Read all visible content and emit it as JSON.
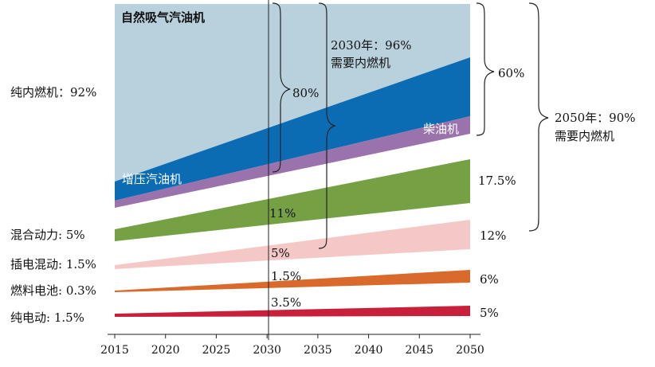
{
  "chart_data": {
    "type": "area",
    "title": "",
    "xlabel": "",
    "ylabel": "",
    "x_ticks": [
      "2015",
      "2020",
      "2025",
      "2030",
      "2035",
      "2040",
      "2045",
      "2050"
    ],
    "xlim": [
      2015,
      2050
    ],
    "series": [
      {
        "name": "自然吸气汽油机",
        "color": "#b9d0dd"
      },
      {
        "name": "增压汽油机",
        "color": "#0b6cb4"
      },
      {
        "name": "柴油机",
        "color": "#9a73ad"
      },
      {
        "name": "混合动力",
        "color": "#76a044"
      },
      {
        "name": "插电混动",
        "color": "#f5c8c8"
      },
      {
        "name": "燃料电池",
        "color": "#d96a2b"
      },
      {
        "name": "纯电动",
        "color": "#c8203b"
      }
    ],
    "labels": {
      "na_gas": "自然吸气汽油机",
      "turbo": "增压汽油机",
      "diesel": "柴油机"
    },
    "left_values": {
      "ice": "纯内燃机：92%",
      "hybrid": "混合动力: 5%",
      "phev": "插电混动: 1.5%",
      "fuel_cell": "燃料电池: 0.3%",
      "ev": "纯电动: 1.5%"
    },
    "mid_values": {
      "ice": "80%",
      "hybrid": "11%",
      "phev": "5%",
      "fuel_cell": "1.5%",
      "ev": "3.5%"
    },
    "mid_total": {
      "line1": "2030年：96%",
      "line2": "需要内燃机"
    },
    "right_values": {
      "ice": "60%",
      "hybrid": "17.5%",
      "phev": "12%",
      "fuel_cell": "6%",
      "ev": "5%"
    },
    "right_total": {
      "line1": "2050年：90%",
      "line2": "需要内燃机"
    }
  }
}
